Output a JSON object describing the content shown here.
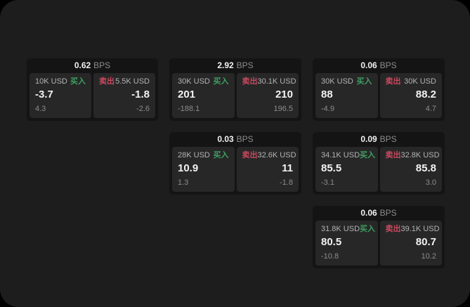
{
  "theme": {
    "outer_background": "#000000",
    "surface": "#1d1d1d",
    "card_background": "#141414",
    "panel_background": "#272727",
    "buy_color": "#3f9e62",
    "sell_color": "#c8495f"
  },
  "labels": {
    "bps_unit": "BPS",
    "buy": "买入",
    "sell": "卖出"
  },
  "cards": [
    {
      "bps": "0.62",
      "buy": {
        "amount": "10K USD",
        "value": "-3.7",
        "sub": "4.3"
      },
      "sell": {
        "amount": "5.5K USD",
        "value": "-1.8",
        "sub": "-2.6"
      }
    },
    {
      "bps": "2.92",
      "buy": {
        "amount": "30K USD",
        "value": "201",
        "sub": "-188.1"
      },
      "sell": {
        "amount": "30.1K USD",
        "value": "210",
        "sub": "196.5"
      }
    },
    {
      "bps": "0.06",
      "buy": {
        "amount": "30K USD",
        "value": "88",
        "sub": "-4.9"
      },
      "sell": {
        "amount": "30K USD",
        "value": "88.2",
        "sub": "4.7"
      }
    },
    {
      "bps": "0.03",
      "buy": {
        "amount": "28K USD",
        "value": "10.9",
        "sub": "1.3"
      },
      "sell": {
        "amount": "32.6K USD",
        "value": "11",
        "sub": "-1.8"
      }
    },
    {
      "bps": "0.09",
      "buy": {
        "amount": "34.1K USD",
        "value": "85.5",
        "sub": "-3.1"
      },
      "sell": {
        "amount": "32.8K USD",
        "value": "85.8",
        "sub": "3.0"
      }
    },
    {
      "bps": "0.06",
      "buy": {
        "amount": "31.8K USD",
        "value": "80.5",
        "sub": "-10.8"
      },
      "sell": {
        "amount": "39.1K USD",
        "value": "80.7",
        "sub": "10.2"
      }
    }
  ]
}
